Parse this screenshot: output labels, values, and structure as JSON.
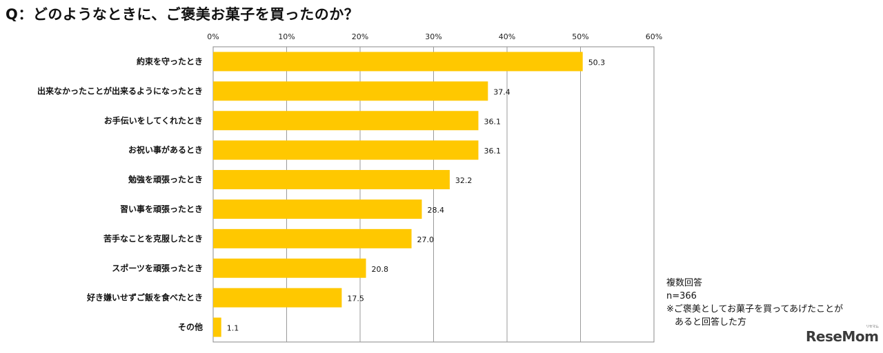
{
  "title": "Q：どのようなときに、ご褒美お菓子を買ったのか？",
  "chart_data": {
    "type": "bar",
    "orientation": "horizontal",
    "categories": [
      "約束を守ったとき",
      "出来なかったことが出来るようになったとき",
      "お手伝いをしてくれたとき",
      "お祝い事があるとき",
      "勉強を頑張ったとき",
      "習い事を頑張ったとき",
      "苦手なことを克服したとき",
      "スポーツを頑張ったとき",
      "好き嫌いせずご飯を食べたとき",
      "その他"
    ],
    "values": [
      50.3,
      37.4,
      36.1,
      36.1,
      32.2,
      28.4,
      27.0,
      20.8,
      17.5,
      1.1
    ],
    "value_labels": [
      "50.3",
      "37.4",
      "36.1",
      "36.1",
      "32.2",
      "28.4",
      "27.0",
      "20.8",
      "17.5",
      "1.1"
    ],
    "xlim": [
      0,
      60
    ],
    "ticks": [
      0,
      10,
      20,
      30,
      40,
      50,
      60
    ],
    "tick_labels": [
      "0%",
      "10%",
      "20%",
      "30%",
      "40%",
      "50%",
      "60%"
    ],
    "grid": true,
    "bar_color": "#FFC800"
  },
  "note": {
    "line1": "複数回答",
    "line2": "n=366",
    "line3": "※ご褒美としてお菓子を買ってあげたことが",
    "line4": "あると回答した方"
  },
  "logo": {
    "text": "ReseMom",
    "sup": "リセマム"
  }
}
